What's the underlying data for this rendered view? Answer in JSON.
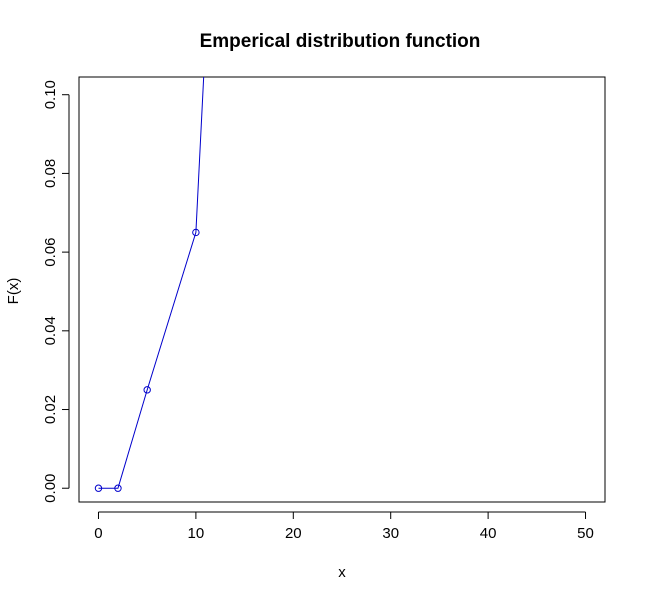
{
  "chart_data": {
    "type": "line",
    "title": "Emperical distribution function",
    "xlabel": "x",
    "ylabel": "F(x)",
    "xlim": [
      -2,
      52
    ],
    "ylim": [
      -0.0035,
      0.1045
    ],
    "x_ticks": [
      0,
      10,
      20,
      30,
      40,
      50
    ],
    "x_tick_labels": [
      "0",
      "10",
      "20",
      "30",
      "40",
      "50"
    ],
    "y_ticks": [
      0.0,
      0.02,
      0.04,
      0.06,
      0.08,
      0.1
    ],
    "y_tick_labels": [
      "0.00",
      "0.02",
      "0.04",
      "0.06",
      "0.08",
      "0.10"
    ],
    "grid": false,
    "series": [
      {
        "color": "#0000cc",
        "points": [
          {
            "x": 0,
            "y": 0.0
          },
          {
            "x": 2,
            "y": 0.0
          },
          {
            "x": 5,
            "y": 0.025
          },
          {
            "x": 10,
            "y": 0.065
          }
        ],
        "line_extends_to": {
          "x": 10.8,
          "y": 0.1045
        }
      }
    ]
  }
}
